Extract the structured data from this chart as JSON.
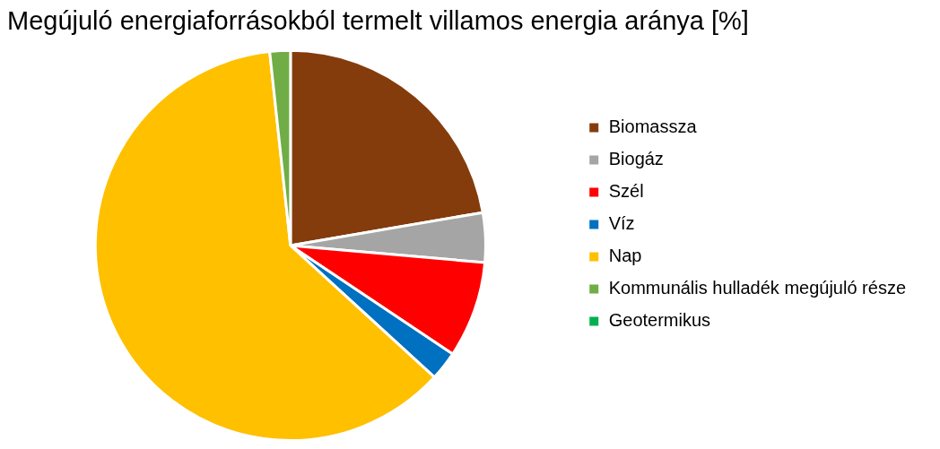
{
  "chart_data": {
    "type": "pie",
    "title": "Megújuló energiaforrásokból termelt villamos energia aránya [%]",
    "categories": [
      "Biomassza",
      "Biogáz",
      "Szél",
      "Víz",
      "Nap",
      "Kommunális hulladék megújuló része",
      "Geotermikus"
    ],
    "values": [
      22.3,
      4.1,
      8.0,
      2.4,
      61.5,
      1.7,
      0
    ],
    "colors": [
      "#843c0c",
      "#a5a5a5",
      "#ff0000",
      "#0070c0",
      "#ffc000",
      "#70ad47",
      "#00b050"
    ],
    "legend": "right"
  }
}
